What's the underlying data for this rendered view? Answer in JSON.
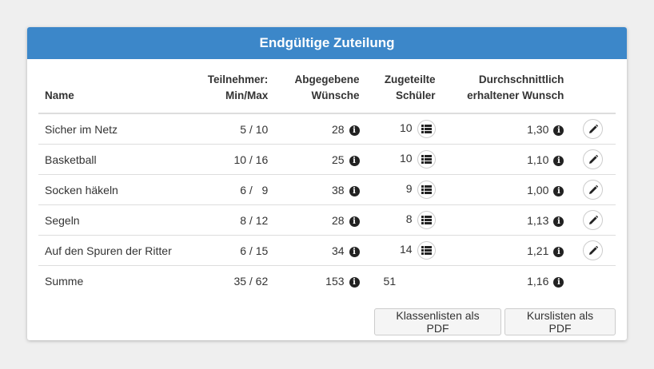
{
  "panel": {
    "title": "Endgültige Zuteilung"
  },
  "table": {
    "headers": {
      "name": "Name",
      "teilnehmer_line1": "Teilnehmer:",
      "teilnehmer_line2": "Min/Max",
      "wuensche_line1": "Abgegebene",
      "wuensche_line2": "Wünsche",
      "zugeteilt_line1": "Zugeteilte",
      "zugeteilt_line2": "Schüler",
      "durchschnitt_line1": "Durchschnittlich",
      "durchschnitt_line2": "erhaltener Wunsch"
    },
    "rows": [
      {
        "name": "Sicher im Netz",
        "minmax": "5 / 10",
        "wuensche": "28",
        "zugeteilt": "10",
        "durchschnitt": "1,30"
      },
      {
        "name": "Basketball",
        "minmax": "10 / 16",
        "wuensche": "25",
        "zugeteilt": "10",
        "durchschnitt": "1,10"
      },
      {
        "name": "Socken häkeln",
        "minmax": "6 /   9",
        "wuensche": "38",
        "zugeteilt": "9",
        "durchschnitt": "1,00"
      },
      {
        "name": "Segeln",
        "minmax": "8 / 12",
        "wuensche": "28",
        "zugeteilt": "8",
        "durchschnitt": "1,13"
      },
      {
        "name": "Auf den Spuren der Ritter",
        "minmax": "6 / 15",
        "wuensche": "34",
        "zugeteilt": "14",
        "durchschnitt": "1,21"
      }
    ],
    "sum": {
      "name": "Summe",
      "minmax": "35 / 62",
      "wuensche": "153",
      "zugeteilt": "51",
      "durchschnitt": "1,16"
    }
  },
  "icons": {
    "info": "info-icon",
    "list": "list-icon",
    "edit": "pencil-icon"
  },
  "buttons": {
    "klassenlisten": "Klassenlisten als PDF",
    "kurslisten": "Kurslisten als PDF"
  },
  "colors": {
    "header_bg": "#3c87c9",
    "page_bg": "#efefef"
  }
}
